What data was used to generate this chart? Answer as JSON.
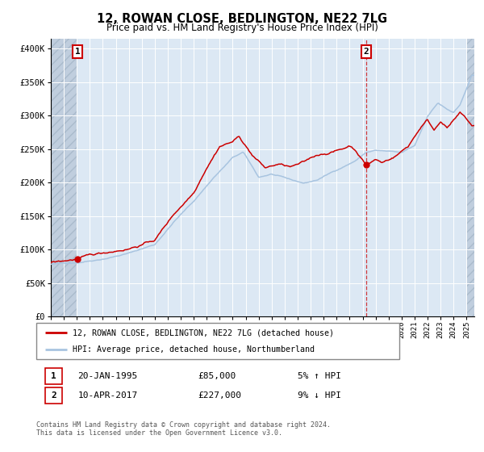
{
  "title": "12, ROWAN CLOSE, BEDLINGTON, NE22 7LG",
  "subtitle": "Price paid vs. HM Land Registry's House Price Index (HPI)",
  "ylabel_ticks": [
    "£0",
    "£50K",
    "£100K",
    "£150K",
    "£200K",
    "£250K",
    "£300K",
    "£350K",
    "£400K"
  ],
  "ytick_values": [
    0,
    50000,
    100000,
    150000,
    200000,
    250000,
    300000,
    350000,
    400000
  ],
  "ylim": [
    0,
    415000
  ],
  "xlim_start": 1993.0,
  "xlim_end": 2025.6,
  "legend_line1": "12, ROWAN CLOSE, BEDLINGTON, NE22 7LG (detached house)",
  "legend_line2": "HPI: Average price, detached house, Northumberland",
  "annotation1_label": "1",
  "annotation1_date": "20-JAN-1995",
  "annotation1_price": "£85,000",
  "annotation1_hpi": "5% ↑ HPI",
  "annotation2_label": "2",
  "annotation2_date": "10-APR-2017",
  "annotation2_price": "£227,000",
  "annotation2_hpi": "9% ↓ HPI",
  "footnote1": "Contains HM Land Registry data © Crown copyright and database right 2024.",
  "footnote2": "This data is licensed under the Open Government Licence v3.0.",
  "sale1_year": 1995.05,
  "sale1_price": 85000,
  "sale2_year": 2017.27,
  "sale2_price": 227000,
  "hpi_color": "#a8c4e0",
  "price_color": "#cc0000",
  "background_plot": "#dce8f4",
  "grid_color": "#ffffff",
  "hatch_color": "#c0cede"
}
